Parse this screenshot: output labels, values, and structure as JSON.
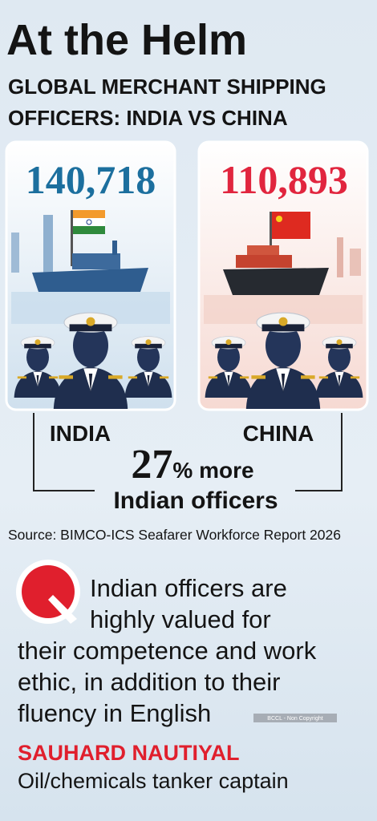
{
  "header": {
    "title": "At the Helm",
    "subtitle_lines": [
      "GLOBAL MERCHANT SHIPPING",
      "OFFICERS: INDIA VS CHINA"
    ]
  },
  "panels": [
    {
      "count": "140,718",
      "label": "INDIA"
    },
    {
      "count": "110,893",
      "label": "CHINA"
    }
  ],
  "comparison": {
    "figure": "27",
    "unit": "% more",
    "text": "Indian officers"
  },
  "source": "Source: BIMCO-ICS Seafarer Workforce Report 2026",
  "quote": {
    "lines": [
      "Indian officers are",
      "highly valued for",
      "their competence and work",
      "ethic, in addition to their",
      "fluency in English"
    ],
    "name": "SAUHARD NAUTIYAL",
    "role": "Oil/chemicals tanker captain"
  },
  "credit": "BCCL - Non Copyright"
}
